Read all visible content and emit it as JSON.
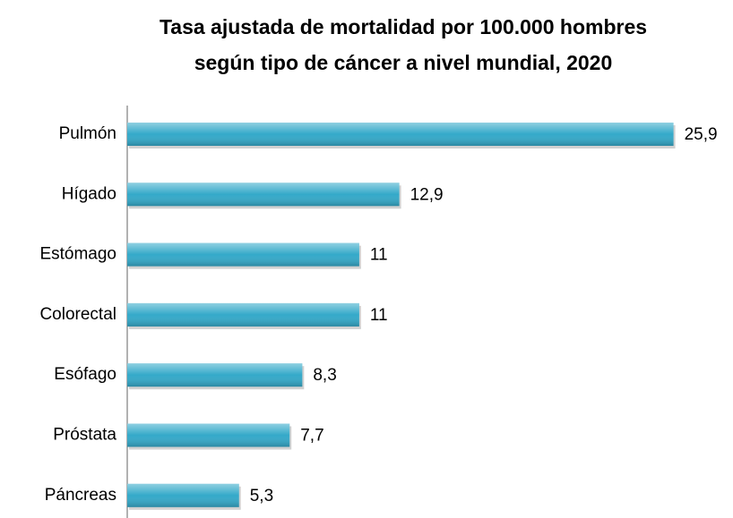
{
  "chart_data": {
    "type": "bar",
    "orientation": "horizontal",
    "title": [
      "Tasa ajustada de mortalidad por 100.000 hombres",
      "según tipo de cáncer a nivel mundial, 2020"
    ],
    "categories": [
      "Pulmón",
      "Hígado",
      "Estómago",
      "Colorectal",
      "Esófago",
      "Próstata",
      "Páncreas"
    ],
    "values": [
      25.9,
      12.9,
      11,
      11,
      8.3,
      7.7,
      5.3
    ],
    "value_labels": [
      "25,9",
      "12,9",
      "11",
      "11",
      "8,3",
      "7,7",
      "5,3"
    ],
    "color": "#34a9c9",
    "xlim": [
      0,
      28
    ]
  }
}
